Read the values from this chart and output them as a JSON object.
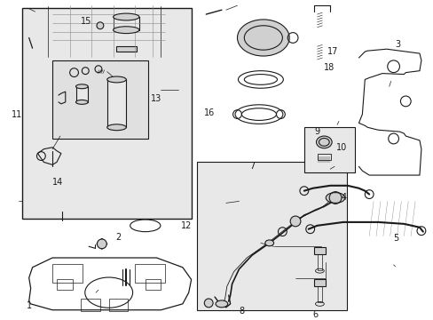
{
  "bg_color": "#ffffff",
  "fig_width": 4.89,
  "fig_height": 3.6,
  "dpi": 100,
  "lc": "#1a1a1a",
  "fill_light": "#e8e8e8",
  "fill_mid": "#d0d0d0",
  "fill_dark": "#b0b0b0"
}
